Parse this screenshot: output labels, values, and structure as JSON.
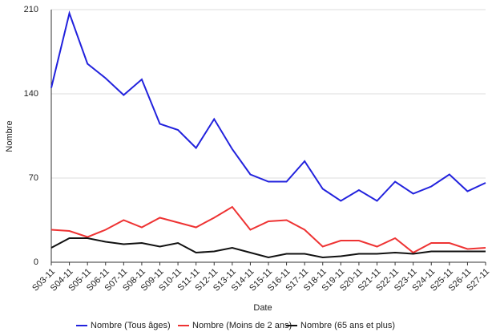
{
  "chart_data": {
    "type": "line",
    "xlabel": "Date",
    "ylabel": "Nombre",
    "categories": [
      "S03-11",
      "S04-11",
      "S05-11",
      "S06-11",
      "S07-11",
      "S08-11",
      "S09-11",
      "S10-11",
      "S11-11",
      "S12-11",
      "S13-11",
      "S14-11",
      "S15-11",
      "S16-11",
      "S17-11",
      "S18-11",
      "S19-11",
      "S20-11",
      "S21-11",
      "S22-11",
      "S23-11",
      "S24-11",
      "S25-11",
      "S26-11",
      "S27-11"
    ],
    "series": [
      {
        "name": "Nombre (Tous âges)",
        "color": "#2222dd",
        "values": [
          145,
          207,
          165,
          153,
          139,
          152,
          115,
          110,
          95,
          119,
          94,
          73,
          67,
          67,
          84,
          61,
          51,
          60,
          51,
          67,
          57,
          63,
          73,
          59,
          66
        ]
      },
      {
        "name": "Nombre (Moins de 2 ans)",
        "color": "#ee3333",
        "values": [
          27,
          26,
          21,
          27,
          35,
          29,
          37,
          33,
          29,
          37,
          46,
          27,
          34,
          35,
          27,
          13,
          18,
          18,
          13,
          20,
          8,
          16,
          16,
          11,
          12
        ]
      },
      {
        "name": "Nombre (65 ans et plus)",
        "color": "#111111",
        "values": [
          12,
          20,
          20,
          17,
          15,
          16,
          13,
          16,
          8,
          9,
          12,
          8,
          4,
          7,
          7,
          4,
          5,
          7,
          7,
          8,
          7,
          9,
          9,
          9,
          9
        ]
      }
    ],
    "ylim": [
      0,
      210
    ],
    "yticks": [
      0,
      70,
      140,
      210
    ],
    "grid": true,
    "legend": "bottom"
  }
}
